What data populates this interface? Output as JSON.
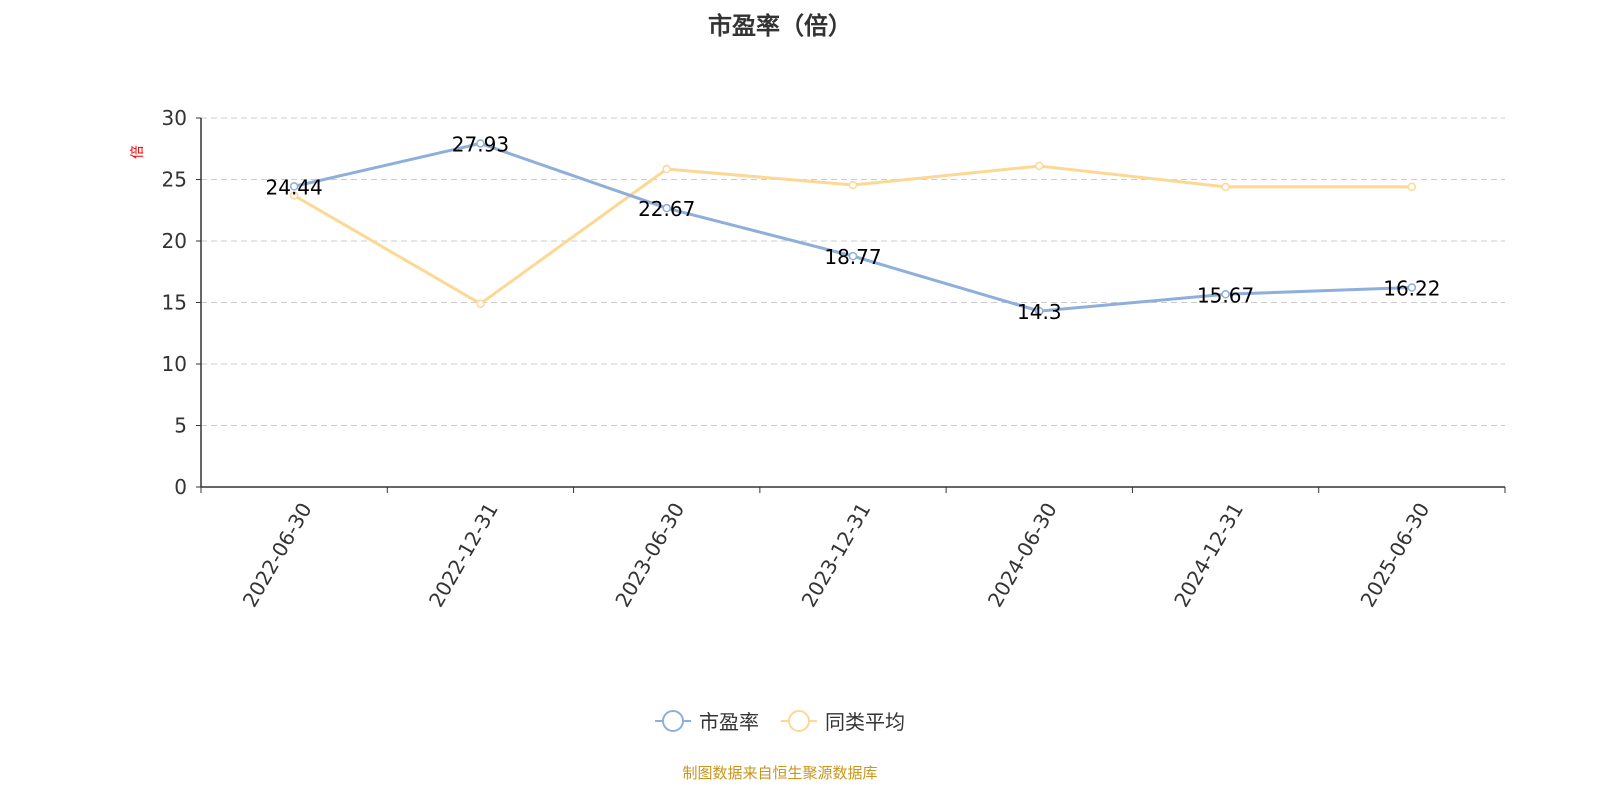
{
  "chart_data": {
    "type": "line",
    "title": "市盈率（倍）",
    "ylabel": "倍",
    "xlabel": "",
    "categories": [
      "2022-06-30",
      "2022-12-31",
      "2023-06-30",
      "2023-12-31",
      "2024-06-30",
      "2024-12-31",
      "2025-06-30"
    ],
    "ylim": [
      0,
      30
    ],
    "yticks": [
      0,
      5,
      10,
      15,
      20,
      25,
      30
    ],
    "grid": true,
    "legend_position": "bottom",
    "series": [
      {
        "name": "市盈率",
        "color": "#8eaedb",
        "values": [
          24.44,
          27.93,
          22.67,
          18.77,
          14.3,
          15.67,
          16.22
        ],
        "labels": [
          "24.44",
          "27.93",
          "22.67",
          "18.77",
          "14.3",
          "15.67",
          "16.22"
        ]
      },
      {
        "name": "同类平均",
        "color": "#fdd894",
        "values": [
          23.7,
          14.9,
          25.85,
          24.55,
          26.1,
          24.4,
          24.4
        ]
      }
    ]
  },
  "source": "制图数据来自恒生聚源数据库"
}
